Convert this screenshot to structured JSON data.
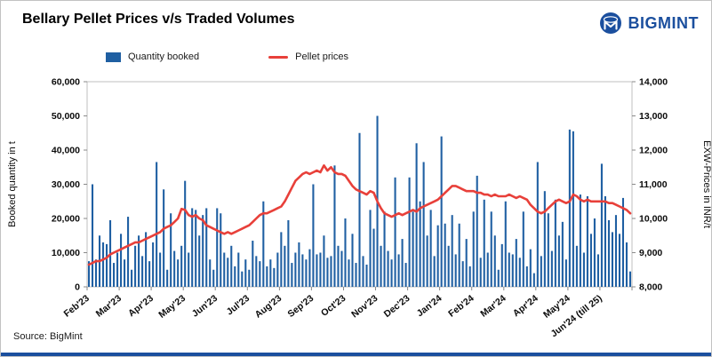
{
  "header": {
    "title": "Bellary Pellet Prices v/s Traded Volumes",
    "brand": "BIGMINT"
  },
  "colors": {
    "brand_blue": "#1b4f9e",
    "bar_blue": "#1f5fa2",
    "line_red": "#e8403a"
  },
  "source": "Source: BigMint",
  "chart_data": {
    "type": "bar+line",
    "title": "Bellary Pellet Prices v/s Traded Volumes",
    "legend_position": "top",
    "grid": false,
    "points_per_month": 9,
    "categories": [
      "Feb'23",
      "Mar'23",
      "Apr'23",
      "May'23",
      "Jun'23",
      "Jul'23",
      "Aug'23",
      "Sep'23",
      "Oct'23",
      "Nov'23",
      "Dec'23",
      "Jan'24",
      "Feb'24",
      "Mar'24",
      "Apr'24",
      "May'24",
      "Jun'24 (till 25)"
    ],
    "left_axis": {
      "label": "Booked quantity in t",
      "min": 0,
      "max": 60000,
      "step": 10000
    },
    "right_axis": {
      "label": "EXW-Prices in INR/t",
      "min": 8000,
      "max": 14000,
      "step": 1000
    },
    "series": [
      {
        "name": "Quantity booked",
        "type": "bar",
        "axis": "left",
        "color": "#1f5fa2",
        "values": [
          7500,
          30000,
          8000,
          15000,
          13000,
          12500,
          19500,
          7000,
          10000,
          15500,
          8000,
          20500,
          5000,
          12000,
          15000,
          9000,
          16000,
          7500,
          13000,
          36500,
          10000,
          28500,
          5000,
          21500,
          10500,
          8000,
          12000,
          31000,
          10000,
          23000,
          22500,
          15000,
          21000,
          23000,
          8000,
          5000,
          23000,
          21500,
          10000,
          8500,
          12000,
          6000,
          10000,
          4500,
          8000,
          5000,
          13500,
          9000,
          7500,
          25000,
          6000,
          8000,
          5500,
          10000,
          16000,
          12000,
          19500,
          7000,
          10000,
          13000,
          9500,
          8000,
          11000,
          30000,
          9500,
          10000,
          15000,
          8500,
          9000,
          35500,
          12000,
          10500,
          20000,
          8000,
          15500,
          7000,
          45000,
          9000,
          6500,
          22500,
          17000,
          50000,
          12000,
          22000,
          10500,
          8000,
          32000,
          9500,
          14000,
          7000,
          32000,
          22000,
          42000,
          25000,
          36500,
          15000,
          22500,
          9000,
          18000,
          44000,
          18500,
          12000,
          21000,
          9500,
          18500,
          7500,
          14000,
          6000,
          22000,
          32500,
          8500,
          25500,
          10000,
          22000,
          15000,
          5000,
          12500,
          25000,
          10000,
          9500,
          14000,
          8500,
          22000,
          6000,
          11000,
          4000,
          36500,
          9000,
          28000,
          21500,
          10500,
          25500,
          15000,
          19000,
          8000,
          46000,
          45500,
          12000,
          27000,
          10000,
          26500,
          15500,
          20000,
          9500,
          36000,
          26500,
          19500,
          16000,
          21000,
          15500,
          26000,
          13000,
          4500
        ]
      },
      {
        "name": "Pellet prices",
        "type": "line",
        "axis": "right",
        "color": "#e8403a",
        "values": [
          8650,
          8700,
          8750,
          8750,
          8800,
          8850,
          8950,
          9000,
          9050,
          9100,
          9150,
          9200,
          9250,
          9300,
          9300,
          9350,
          9400,
          9450,
          9500,
          9550,
          9600,
          9700,
          9750,
          9800,
          9900,
          10000,
          10280,
          10250,
          10100,
          10050,
          10100,
          10000,
          9950,
          9800,
          9750,
          9700,
          9650,
          9600,
          9550,
          9600,
          9550,
          9600,
          9650,
          9700,
          9750,
          9800,
          9900,
          10000,
          10100,
          10150,
          10150,
          10200,
          10250,
          10300,
          10350,
          10500,
          10700,
          10900,
          11100,
          11200,
          11300,
          11350,
          11300,
          11350,
          11400,
          11350,
          11550,
          11400,
          11500,
          11350,
          11300,
          11300,
          11250,
          11100,
          10950,
          10850,
          10800,
          10750,
          10700,
          10800,
          10750,
          10500,
          10300,
          10150,
          10100,
          10050,
          10100,
          10150,
          10100,
          10150,
          10200,
          10250,
          10200,
          10300,
          10350,
          10400,
          10450,
          10500,
          10550,
          10650,
          10750,
          10850,
          10950,
          10950,
          10900,
          10850,
          10800,
          10800,
          10800,
          10750,
          10750,
          10700,
          10700,
          10650,
          10700,
          10650,
          10650,
          10650,
          10700,
          10650,
          10600,
          10650,
          10600,
          10550,
          10400,
          10300,
          10200,
          10150,
          10200,
          10300,
          10400,
          10500,
          10550,
          10500,
          10450,
          10500,
          10700,
          10650,
          10550,
          10500,
          10550,
          10500,
          10500,
          10500,
          10500,
          10500,
          10450,
          10450,
          10400,
          10350,
          10300,
          10250,
          10150
        ]
      }
    ]
  }
}
